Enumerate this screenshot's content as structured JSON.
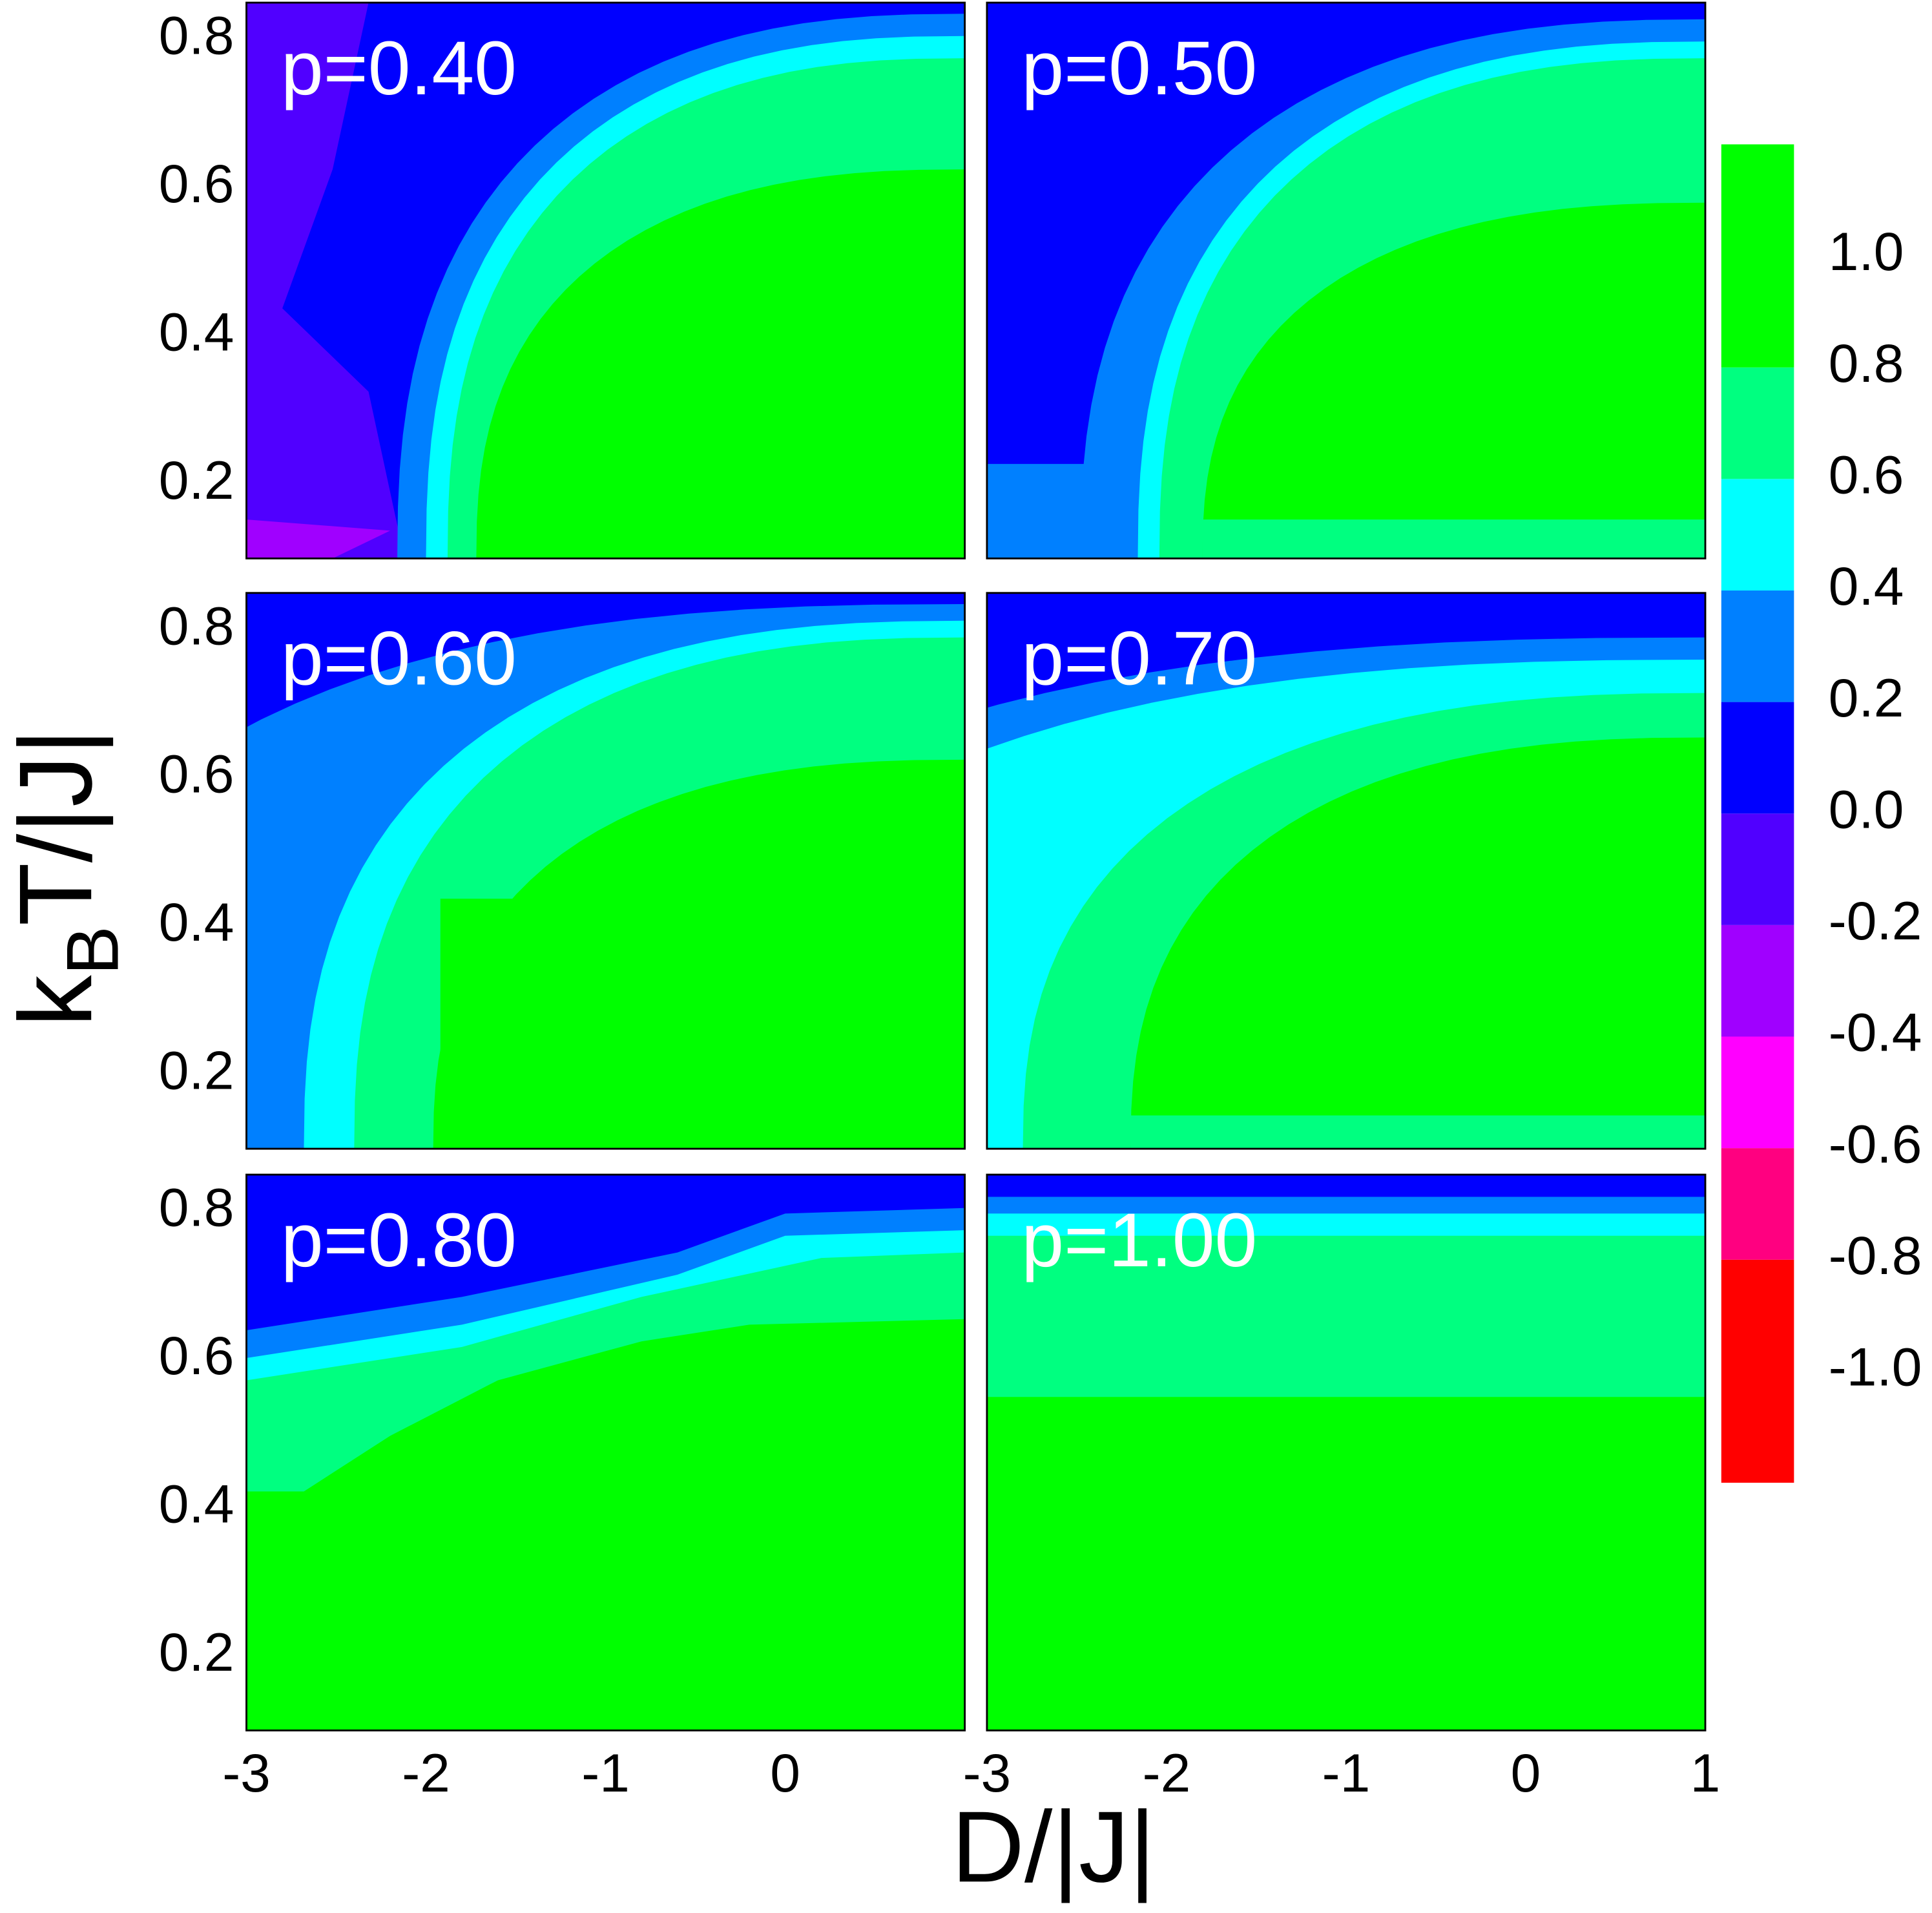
{
  "chart_data": [
    {
      "type": "contour",
      "title": "p=0.40",
      "ylim": [
        0.1,
        0.85
      ],
      "yticks": [
        0.2,
        0.4,
        0.6,
        0.8
      ]
    },
    {
      "type": "contour",
      "title": "p=0.50"
    },
    {
      "type": "contour",
      "title": "p=0.60",
      "ylim": [
        0.1,
        0.85
      ],
      "yticks": [
        0.2,
        0.4,
        0.6,
        0.8
      ]
    },
    {
      "type": "contour",
      "title": "p=0.70"
    },
    {
      "type": "contour",
      "title": "p=0.80",
      "xlim": [
        -3,
        1
      ],
      "ylim": [
        0.1,
        0.85
      ],
      "xticks": [
        -3,
        -2,
        -1,
        0
      ],
      "yticks": [
        0.2,
        0.4,
        0.6,
        0.8
      ]
    },
    {
      "type": "contour",
      "title": "p=1.00",
      "xlim": [
        -3,
        1
      ],
      "xticks": [
        -3,
        -2,
        -1,
        0,
        1
      ]
    }
  ],
  "xlabel": "D/|J|",
  "ylabel": {
    "main": "k",
    "sub": "B",
    "rest": "T/|J|"
  },
  "colorbar": {
    "lim": [
      -1.2,
      1.2
    ],
    "levels": [
      -1.2,
      -0.8,
      -0.6,
      -0.4,
      -0.2,
      0,
      0.2,
      0.4,
      0.6,
      0.8,
      1.2
    ],
    "colors": [
      "#ff0000",
      "#ff0080",
      "#ff00ff",
      "#a000ff",
      "#5000ff",
      "#0000ff",
      "#0080ff",
      "#00ffff",
      "#00ff80",
      "#00ff00"
    ],
    "ticks": [
      {
        "value": 1,
        "label": "1.0"
      },
      0.8,
      0.6,
      0.4,
      0.2,
      {
        "value": 0,
        "label": "0.0"
      },
      -0.2,
      -0.4,
      -0.6,
      -0.8,
      {
        "value": -1,
        "label": "-1.0"
      }
    ]
  }
}
